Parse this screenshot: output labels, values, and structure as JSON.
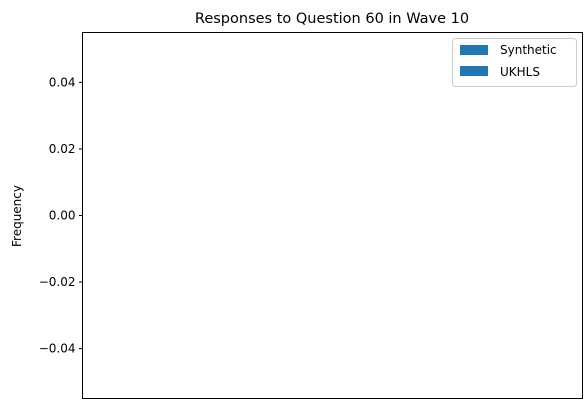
{
  "chart_data": {
    "type": "bar",
    "title": "Responses to Question 60 in Wave 10",
    "xlabel": "",
    "ylabel": "Frequency",
    "categories": [],
    "series": [
      {
        "name": "Synthetic",
        "color": "#1f77b4",
        "values": []
      },
      {
        "name": "UKHLS",
        "color": "#1f77b4",
        "values": []
      }
    ],
    "ylim": [
      -0.055,
      0.055
    ],
    "yticks": [
      -0.04,
      -0.02,
      0.0,
      0.02,
      0.04
    ],
    "ytick_labels": [
      "−0.04",
      "−0.02",
      "0.00",
      "0.02",
      "0.04"
    ],
    "xticks": [],
    "grid": false,
    "legend_position": "upper right"
  }
}
